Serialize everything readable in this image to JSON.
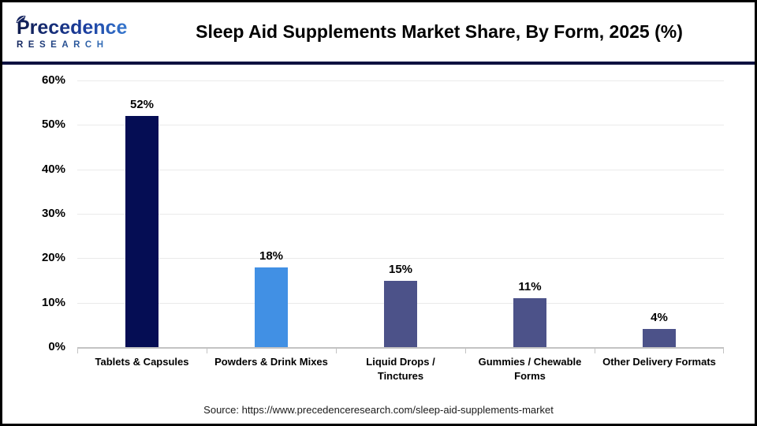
{
  "header": {
    "logo": {
      "line1": "Precedence",
      "line2": "RESEARCH"
    },
    "title": "Sleep Aid Supplements Market Share, By Form, 2025 (%)"
  },
  "chart_data": {
    "type": "bar",
    "title": "Sleep Aid Supplements Market Share, By Form, 2025 (%)",
    "categories": [
      "Tablets & Capsules",
      "Powders & Drink Mixes",
      "Liquid Drops / Tinctures",
      "Gummies / Chewable Forms",
      "Other Delivery Formats"
    ],
    "category_lines": [
      [
        "Tablets & Capsules"
      ],
      [
        "Powders & Drink Mixes"
      ],
      [
        "Liquid Drops /",
        "Tinctures"
      ],
      [
        "Gummies / Chewable",
        "Forms"
      ],
      [
        "Other Delivery Formats"
      ]
    ],
    "values": [
      52,
      18,
      15,
      11,
      4
    ],
    "value_labels": [
      "52%",
      "18%",
      "15%",
      "11%",
      "4%"
    ],
    "unit": "%",
    "bar_colors": [
      "#050d54",
      "#4190e4",
      "#4c5289",
      "#4c5289",
      "#4c5289"
    ],
    "xlabel": "",
    "ylabel": "",
    "ylim": [
      0,
      60
    ],
    "yticks": [
      0,
      10,
      20,
      30,
      40,
      50,
      60
    ],
    "ytick_labels": [
      "0%",
      "10%",
      "20%",
      "30%",
      "40%",
      "50%",
      "60%"
    ],
    "grid": true,
    "legend": false
  },
  "footer": {
    "source": "Source: https://www.precedenceresearch.com/sleep-aid-supplements-market"
  },
  "colors": {
    "bar_primary": "#050d54",
    "bar_accent": "#4190e4",
    "bar_slate": "#4c5289",
    "divider": "#0e1240",
    "gridline": "#eaeaea",
    "axis": "#c3c3c3",
    "logo_dark": "#101c4e",
    "logo_light": "#3f8de0"
  }
}
